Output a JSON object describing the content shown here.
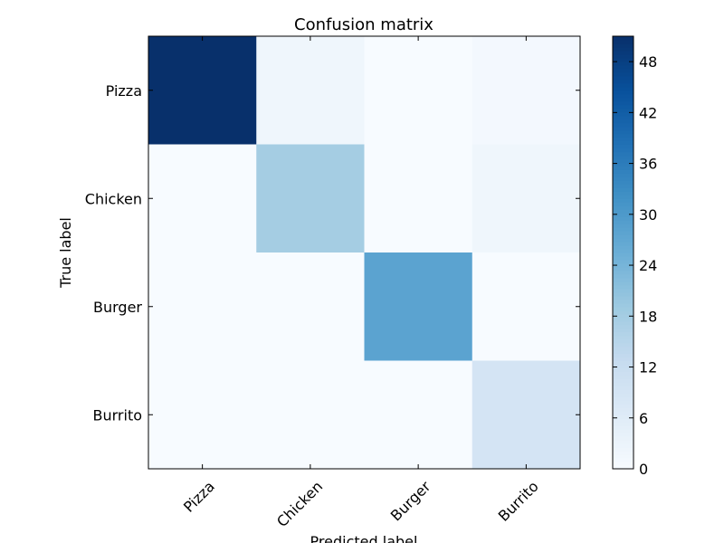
{
  "chart_data": {
    "type": "heatmap",
    "title": "Confusion matrix",
    "xlabel": "Predicted label",
    "ylabel": "True label",
    "x_categories": [
      "Pizza",
      "Chicken",
      "Burger",
      "Burrito"
    ],
    "y_categories": [
      "Pizza",
      "Chicken",
      "Burger",
      "Burrito"
    ],
    "values": [
      [
        51,
        2,
        0,
        1
      ],
      [
        0,
        18,
        0,
        2
      ],
      [
        0,
        0,
        28,
        0
      ],
      [
        0,
        0,
        0,
        9
      ]
    ],
    "colormap": "Blues",
    "colorbar": {
      "range": [
        0,
        51
      ],
      "ticks": [
        0,
        6,
        12,
        18,
        24,
        30,
        36,
        42,
        48
      ]
    },
    "colors": {
      "low": "#f7fbff",
      "high": "#08306b"
    }
  }
}
